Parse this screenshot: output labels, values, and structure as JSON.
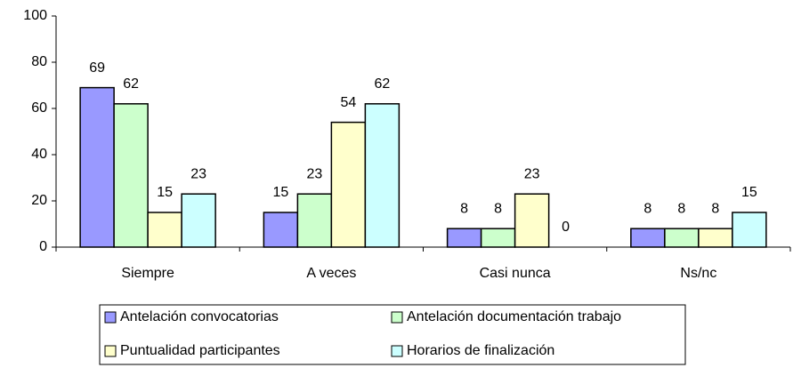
{
  "chart_data": {
    "type": "bar",
    "categories": [
      "Siempre",
      "A veces",
      "Casi nunca",
      "Ns/nc"
    ],
    "series": [
      {
        "name": "Antelación convocatorias",
        "color": "#9999ff",
        "values": [
          69,
          15,
          8,
          8
        ]
      },
      {
        "name": "Antelación documentación trabajo",
        "color": "#ccffcc",
        "values": [
          62,
          23,
          8,
          8
        ]
      },
      {
        "name": "Puntualidad participantes",
        "color": "#ffffcc",
        "values": [
          15,
          54,
          23,
          8
        ]
      },
      {
        "name": "Horarios de finalización",
        "color": "#ccffff",
        "values": [
          23,
          62,
          0,
          15
        ]
      }
    ],
    "ylim": [
      0,
      100
    ],
    "yticks": [
      0,
      20,
      40,
      60,
      80,
      100
    ],
    "grid": false,
    "legend": "bottom"
  }
}
